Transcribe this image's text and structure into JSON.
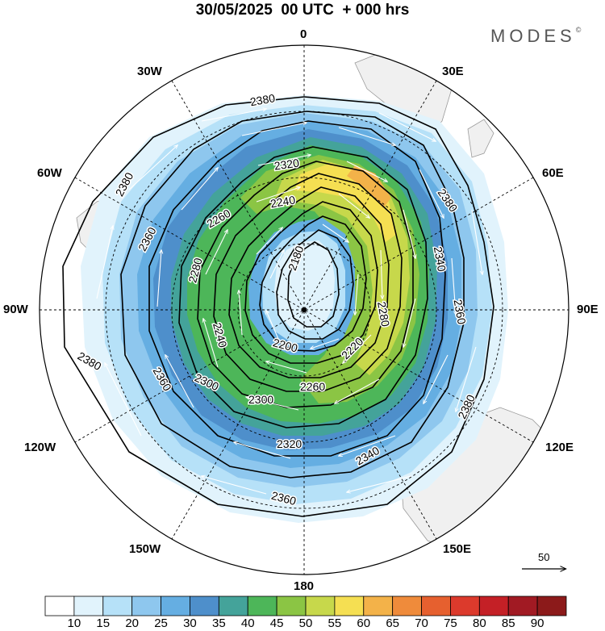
{
  "header": {
    "title": "30/05/2025  00 UTC  + 000 hrs",
    "brand": "MODES",
    "brand_mark": "©"
  },
  "map": {
    "projection": "south-polar-stereographic",
    "lon_labels": {
      "top": "0",
      "top_right": "30E",
      "right_upper": "60E",
      "right": "90E",
      "right_lower": "120E",
      "bottom_right": "150E",
      "bottom": "180",
      "bottom_left": "150W",
      "left_lower": "120W",
      "left": "90W",
      "left_upper": "60W",
      "top_left": "30W"
    },
    "contour_labels": [
      "2380",
      "2380",
      "2380",
      "2380",
      "2380",
      "2360",
      "2360",
      "2360",
      "2360",
      "2340",
      "2340",
      "2320",
      "2320",
      "2300",
      "2300",
      "2280",
      "2280",
      "2260",
      "2260",
      "2240",
      "2240",
      "2220",
      "2200",
      "2180"
    ],
    "reference_vector": "50",
    "land_color": "#f0f0f0",
    "contour_color": "#000000",
    "streamline_color": "#ffffff"
  },
  "colorbar": {
    "ticks": [
      "10",
      "15",
      "20",
      "25",
      "30",
      "35",
      "40",
      "45",
      "50",
      "55",
      "60",
      "65",
      "70",
      "75",
      "80",
      "85",
      "90"
    ],
    "colors": [
      "#ffffff",
      "#e1f3fc",
      "#b6e1f8",
      "#8ec7ee",
      "#65aee2",
      "#4e8fcb",
      "#44a39a",
      "#4db659",
      "#8bc544",
      "#c7d84b",
      "#f5df52",
      "#f3b249",
      "#ef8b3b",
      "#e6602f",
      "#dc3a2c",
      "#c42026",
      "#a11a23",
      "#8c1a1a"
    ]
  }
}
